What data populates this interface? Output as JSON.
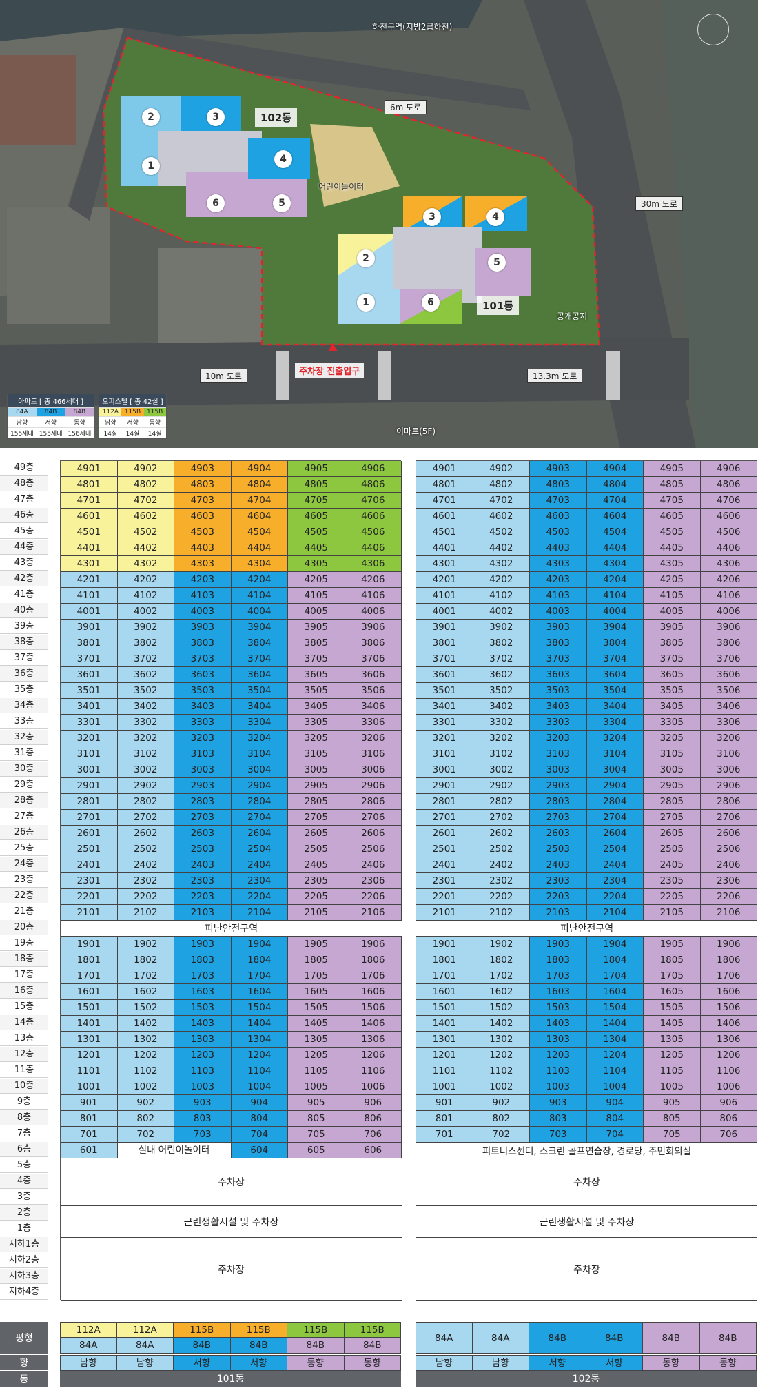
{
  "site_plan": {
    "river_label": "하천구역(지방2급하천)",
    "roads": {
      "road_6m": "6m 도로",
      "road_30m": "30m 도로",
      "road_10m": "10m 도로",
      "road_13m": "13.3m 도로"
    },
    "playground": "어린이놀이터",
    "public_space": "공개공지",
    "entrance": "주차장 진출입구",
    "emart": "이마트(5F)",
    "dong_101": "101동",
    "dong_102": "102동",
    "units_102": [
      "1",
      "2",
      "3",
      "4",
      "5",
      "6"
    ],
    "units_101": [
      "1",
      "2",
      "3",
      "4",
      "5",
      "6"
    ]
  },
  "legend": {
    "apt_title": "아파트 [ 총 466세대 ]",
    "apt_types": [
      "84A",
      "84B",
      "84B"
    ],
    "apt_dirs": [
      "남향",
      "서향",
      "동향"
    ],
    "apt_counts": [
      "155세대",
      "155세대",
      "156세대"
    ],
    "off_title": "오피스텔 [ 총 42실 ]",
    "off_types": [
      "112A",
      "115B",
      "115B"
    ],
    "off_dirs": [
      "남향",
      "서향",
      "동향"
    ],
    "off_counts": [
      "14실",
      "14실",
      "14실"
    ]
  },
  "floors": [
    "49층",
    "48층",
    "47층",
    "46층",
    "45층",
    "44층",
    "43층",
    "42층",
    "41층",
    "40층",
    "39층",
    "38층",
    "37층",
    "36층",
    "35층",
    "34층",
    "33층",
    "32층",
    "31층",
    "30층",
    "29층",
    "28층",
    "27층",
    "26층",
    "25층",
    "24층",
    "23층",
    "22층",
    "21층",
    "20층",
    "19층",
    "18층",
    "17층",
    "16층",
    "15층",
    "14층",
    "13층",
    "12층",
    "11층",
    "10층",
    "9층",
    "8층",
    "7층",
    "6층",
    "5층",
    "4층",
    "3층",
    "2층",
    "1층",
    "지하1층",
    "지하2층",
    "지하3층",
    "지하4층"
  ],
  "tower101": {
    "refuge": "피난안전구역",
    "floor6": [
      "601",
      "실내 어린이놀이터",
      "604",
      "605",
      "606"
    ],
    "parking_upper": "주차장",
    "retail": "근린생활시설 및 주차장",
    "parking_lower": "주차장",
    "types_top": [
      "112A",
      "112A",
      "115B",
      "115B",
      "115B",
      "115B"
    ],
    "types_bottom": [
      "84A",
      "84A",
      "84B",
      "84B",
      "84B",
      "84B"
    ],
    "directions": [
      "남향",
      "남향",
      "서향",
      "서향",
      "동향",
      "동향"
    ],
    "name": "101동"
  },
  "tower102": {
    "refuge": "피난안전구역",
    "floor6": "피트니스센터, 스크린 골프연습장, 경로당, 주민회의실",
    "parking_upper": "주차장",
    "retail": "근린생활시설 및 주차장",
    "parking_lower": "주차장",
    "types": [
      "84A",
      "84A",
      "84B",
      "84B",
      "84B",
      "84B"
    ],
    "directions": [
      "남향",
      "남향",
      "서향",
      "서향",
      "동향",
      "동향"
    ],
    "name": "102동"
  },
  "bottom_labels": {
    "area": "평형",
    "direction": "향",
    "dong": "동"
  },
  "colors": {
    "yellow": "#f8f39b",
    "orange": "#f7ae2b",
    "green": "#8dc63f",
    "light_blue": "#a8d8f0",
    "blue": "#1fa2e2",
    "purple": "#c6a7d1"
  }
}
